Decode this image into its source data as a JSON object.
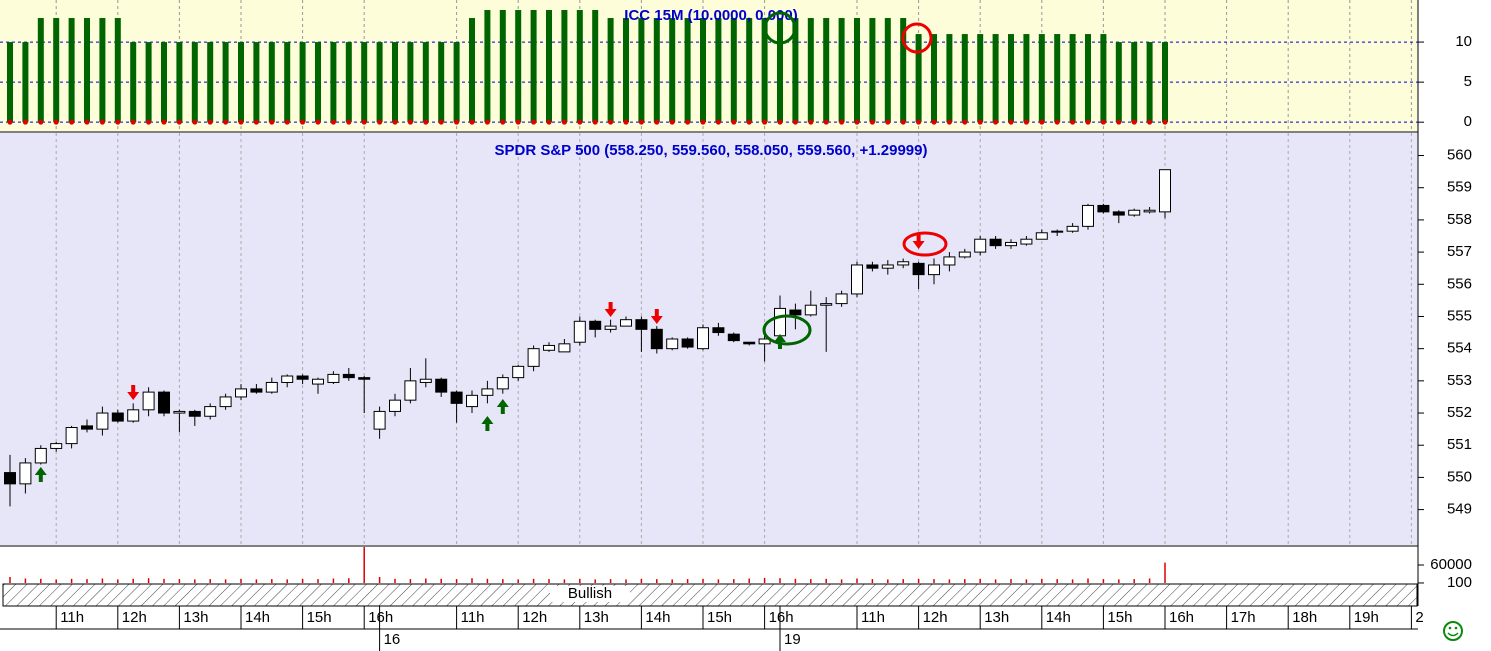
{
  "chart_data": [
    {
      "type": "bar",
      "title": "ICC 15M (10.0000, 0.000)",
      "color": "#006400",
      "values": [
        10,
        10,
        13,
        13,
        13,
        13,
        13,
        13,
        10,
        10,
        10,
        10,
        10,
        10,
        10,
        10,
        10,
        10,
        10,
        10,
        10,
        10,
        10,
        10,
        10,
        10,
        10,
        10,
        10,
        10,
        13,
        14,
        14,
        14,
        14,
        14,
        14,
        14,
        14,
        13,
        13,
        13,
        13,
        13,
        13,
        13,
        13,
        13,
        13,
        13,
        13,
        13,
        13,
        13,
        13,
        13,
        13,
        13,
        13,
        11,
        11,
        11,
        11,
        11,
        11,
        11,
        11,
        11,
        11,
        11,
        11,
        11,
        10,
        10,
        10,
        10
      ],
      "ylim": [
        -1.1,
        15.25
      ],
      "yticks": [
        0,
        5,
        10
      ],
      "grid": true
    },
    {
      "type": "candlestick",
      "title": "SPDR S&P 500 (558.250, 559.560, 558.050, 559.560, +1.29999)",
      "open": [
        550.15,
        549.8,
        550.45,
        550.9,
        551.05,
        551.6,
        551.5,
        552,
        551.75,
        552.1,
        552.65,
        552,
        552.05,
        551.9,
        552.2,
        552.5,
        552.75,
        552.65,
        552.95,
        553.15,
        552.9,
        552.95,
        553.2,
        553.1,
        551.5,
        552.05,
        552.4,
        552.95,
        553.05,
        552.65,
        552.2,
        552.55,
        552.75,
        553.1,
        553.45,
        553.95,
        553.9,
        554.2,
        554.85,
        554.6,
        554.7,
        554.9,
        554.6,
        554,
        554.3,
        554,
        554.65,
        554.45,
        554.2,
        554.15,
        554.4,
        555.2,
        555.05,
        555.35,
        555.4,
        555.7,
        556.6,
        556.5,
        556.6,
        556.65,
        556.3,
        556.6,
        556.85,
        557,
        557.4,
        557.2,
        557.25,
        557.4,
        557.65,
        557.65,
        557.8,
        558.45,
        558.25,
        558.15,
        558.25,
        558.25
      ],
      "high": [
        550.7,
        550.6,
        551,
        551.1,
        551.6,
        551.8,
        552.2,
        552.1,
        552.3,
        552.8,
        552.7,
        552.1,
        552.1,
        552.3,
        552.6,
        552.9,
        552.9,
        553.1,
        553.2,
        553.2,
        553.1,
        553.3,
        553.4,
        553.15,
        552.2,
        552.6,
        553.4,
        553.7,
        553.1,
        552.7,
        552.7,
        553,
        553.2,
        553.5,
        554.1,
        554.2,
        554.3,
        555,
        554.9,
        554.9,
        555,
        555,
        554.7,
        554.35,
        554.35,
        554.75,
        554.8,
        554.5,
        554.2,
        554.5,
        555.65,
        555.4,
        555.8,
        555.6,
        555.8,
        556.7,
        556.7,
        556.75,
        556.8,
        556.7,
        556.8,
        557,
        557.1,
        557.5,
        557.5,
        557.4,
        557.5,
        557.7,
        557.7,
        557.9,
        558.5,
        558.5,
        558.3,
        558.35,
        558.4,
        559.56
      ],
      "low": [
        549.1,
        549.5,
        550.4,
        550.8,
        550.9,
        551.4,
        551.3,
        551.7,
        551.7,
        551.9,
        551.9,
        551.4,
        551.6,
        551.8,
        552.1,
        552.4,
        552.6,
        552.6,
        552.8,
        552.9,
        552.6,
        552.9,
        553,
        552,
        551.2,
        551.9,
        552.3,
        552.8,
        552.5,
        551.7,
        552,
        552.3,
        552.6,
        553,
        553.3,
        553.9,
        553.9,
        554.1,
        554.35,
        554.5,
        554.7,
        553.9,
        553.85,
        553.95,
        554,
        553.95,
        554.4,
        554.2,
        554.1,
        553.6,
        554.3,
        554.6,
        555,
        553.9,
        555.3,
        555.6,
        556.4,
        556.3,
        556.5,
        555.85,
        556,
        556.4,
        556.8,
        556.9,
        557.1,
        557.1,
        557.2,
        557.4,
        557.5,
        557.6,
        557.7,
        558.2,
        557.9,
        558.1,
        558.2,
        558.05
      ],
      "close": [
        549.8,
        550.45,
        550.9,
        551.05,
        551.55,
        551.5,
        552,
        551.75,
        552.1,
        552.65,
        552,
        552.05,
        551.9,
        552.2,
        552.5,
        552.75,
        552.65,
        552.95,
        553.15,
        553.05,
        553.05,
        553.2,
        553.1,
        553.05,
        552.05,
        552.4,
        553,
        553.05,
        552.65,
        552.3,
        552.55,
        552.75,
        553.1,
        553.45,
        554,
        554.1,
        554.15,
        554.85,
        554.6,
        554.7,
        554.9,
        554.6,
        554,
        554.3,
        554.05,
        554.65,
        554.5,
        554.25,
        554.15,
        554.3,
        555.25,
        555.05,
        555.35,
        555.4,
        555.7,
        556.6,
        556.5,
        556.6,
        556.7,
        556.3,
        556.6,
        556.85,
        557,
        557.4,
        557.2,
        557.3,
        557.4,
        557.6,
        557.65,
        557.8,
        558.45,
        558.25,
        558.15,
        558.3,
        558.3,
        559.56
      ],
      "ylim": [
        547.9,
        560.7
      ],
      "yticks": [
        549,
        550,
        551,
        552,
        553,
        554,
        555,
        556,
        557,
        558,
        559,
        560
      ]
    },
    {
      "type": "bar",
      "color": "#dd0000",
      "values": [
        20000,
        15000,
        14000,
        12000,
        14000,
        13000,
        15000,
        12000,
        14000,
        16000,
        14000,
        13000,
        12000,
        13000,
        12000,
        14000,
        12000,
        13000,
        12000,
        14000,
        13000,
        15000,
        16000,
        120000,
        20000,
        14000,
        13000,
        15000,
        14000,
        13000,
        16000,
        14000,
        13000,
        12000,
        14000,
        13000,
        12000,
        14000,
        12000,
        13000,
        12000,
        14000,
        13000,
        12000,
        13000,
        14000,
        12000,
        13000,
        15000,
        17000,
        16000,
        14000,
        13000,
        14000,
        12000,
        15000,
        13000,
        12000,
        13000,
        14000,
        13000,
        12000,
        13000,
        14000,
        12000,
        13000,
        12000,
        14000,
        13000,
        12000,
        15000,
        13000,
        12000,
        13000,
        15000,
        68000
      ],
      "ylim": [
        0,
        120000
      ],
      "yticks": [
        100,
        60000
      ]
    }
  ],
  "timeline": {
    "status": "Bullish",
    "hour_labels": [
      "11h",
      "12h",
      "13h",
      "14h",
      "15h",
      "16h",
      "11h",
      "12h",
      "13h",
      "14h",
      "15h",
      "16h",
      "11h",
      "12h",
      "13h",
      "14h",
      "15h",
      "16h",
      "17h",
      "18h",
      "19h",
      "2"
    ],
    "day_labels": [
      "16",
      "19"
    ]
  }
}
